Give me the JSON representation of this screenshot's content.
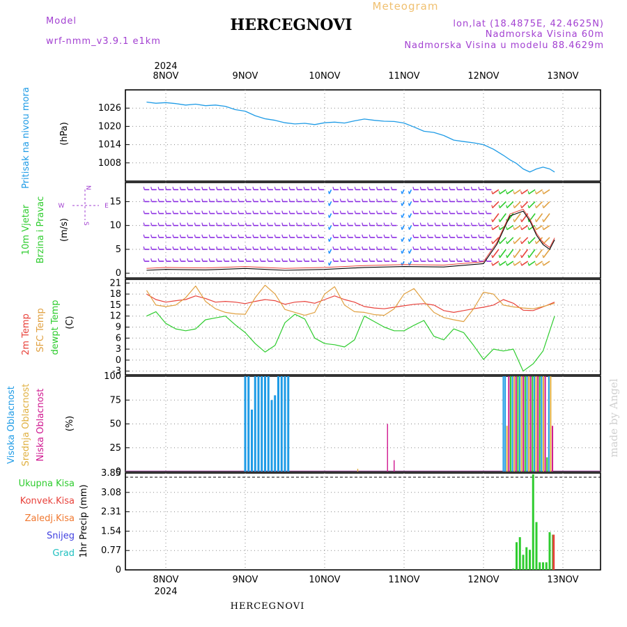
{
  "header": {
    "model_label": "Model",
    "model_name": "wrf-nmm_v3.9.1  e1km",
    "station": "HERCEGNOVI",
    "meteogram_label": "Meteogram",
    "lonlat": "lon,lat (18.4875E, 42.4625N)",
    "altitude": "Nadmorska Visina 60m",
    "model_altitude": "Nadmorska Visina u modelu 88.4629m",
    "footer_station": "HERCEGNOVI",
    "watermark": "made by Angel"
  },
  "colors": {
    "purple": "#a23fd1",
    "pressure": "#1e9be6",
    "wind_purple": "#8a2be2",
    "wind_blue": "#1e90ff",
    "temp2m": "#e8413a",
    "sfc": "#e0a040",
    "dew": "#2ecc2e",
    "high_cloud": "#1e9be6",
    "mid_cloud": "#e0b040",
    "low_cloud": "#d01890",
    "rain": "#2ecc2e",
    "conv": "#e8413a",
    "frozen": "#f07830",
    "snow": "#4040e0",
    "hail": "#20c0c0"
  },
  "time_axis": {
    "top_year": "2024",
    "bottom_year": "2024",
    "days": [
      "8NOV",
      "9NOV",
      "10NOV",
      "11NOV",
      "12NOV",
      "13NOV"
    ]
  },
  "panels": {
    "pressure": {
      "title": "Pritisak na nivou mora",
      "unit": "(hPa)"
    },
    "wind": {
      "title1": "10m Vjetar",
      "title2": "Brzina i Pravac",
      "unit": "(m/s)",
      "compass_n": "N",
      "compass_w": "W",
      "compass_e": "E",
      "compass_s": "S"
    },
    "temp": {
      "label1": "2m Temp",
      "label2": "SFC Temp",
      "label3": "dewpt Temp",
      "unit": "(C)"
    },
    "cloud": {
      "label1": "Visoka Oblacnost",
      "label2": "Srednja Oblacnost",
      "label3": "Niska Oblacnost",
      "unit": "(%)"
    },
    "precip": {
      "label1": "Ukupna Kisa",
      "label2": "Konvek.Kisa",
      "label3": "Zaledj.Kisa",
      "label4": "Snijeg",
      "label5": "Grad",
      "unit": "1hr Precip (mm)"
    }
  },
  "chart_data": [
    {
      "type": "line",
      "title": "Pritisak na nivou mora",
      "ylabel": "(hPa)",
      "ylim": [
        1002,
        1032
      ],
      "yticks": [
        "1026",
        "1020",
        "1014",
        "1008"
      ],
      "x_hours_from_8nov": [
        -6,
        -3,
        0,
        3,
        6,
        9,
        12,
        15,
        18,
        21,
        24,
        27,
        30,
        33,
        36,
        39,
        42,
        45,
        48,
        51,
        54,
        57,
        60,
        63,
        66,
        69,
        72,
        75,
        78,
        81,
        84,
        87,
        90,
        93,
        96,
        99,
        102,
        104,
        106,
        108,
        110,
        112,
        114,
        116,
        117.5
      ],
      "series": [
        {
          "name": "pressure",
          "values": [
            1028,
            1027.6,
            1027.8,
            1027.5,
            1027,
            1027.3,
            1026.8,
            1027,
            1026.6,
            1025.5,
            1025,
            1023.5,
            1022.5,
            1022,
            1021.2,
            1020.8,
            1021,
            1020.6,
            1021.2,
            1021.4,
            1021.1,
            1021.8,
            1022.4,
            1022,
            1021.7,
            1021.6,
            1021.1,
            1019.8,
            1018.4,
            1018,
            1017,
            1015.5,
            1015,
            1014.6,
            1014,
            1012.5,
            1010.5,
            1009,
            1007.8,
            1006,
            1005,
            1006,
            1006.6,
            1006,
            1005
          ]
        }
      ],
      "grid": true
    },
    {
      "type": "line",
      "title": "10m Vjetar Brzina i Pravac",
      "ylabel": "(m/s)",
      "ylim": [
        -1,
        19
      ],
      "yticks": [
        "15",
        "10",
        "5",
        "0"
      ],
      "series": [
        {
          "name": "wind speed",
          "x": [
            -6,
            0,
            12,
            24,
            36,
            48,
            60,
            72,
            84,
            96,
            100,
            104,
            108,
            110,
            112,
            114,
            116,
            117.5
          ],
          "values": [
            0.6,
            0.8,
            0.7,
            1,
            0.6,
            0.8,
            1.2,
            1.4,
            1.3,
            2,
            6,
            12,
            13,
            11,
            8,
            6,
            5,
            7
          ]
        }
      ],
      "grid": true
    },
    {
      "type": "line",
      "title": "2m Temp / SFC Temp / dewpt Temp",
      "ylabel": "(C)",
      "ylim": [
        -4,
        22
      ],
      "yticks": [
        "21",
        "18",
        "15",
        "12",
        "9",
        "6",
        "3",
        "0",
        "-3"
      ],
      "x_hours_from_8nov": [
        -6,
        -3,
        0,
        3,
        6,
        9,
        12,
        15,
        18,
        21,
        24,
        27,
        30,
        33,
        36,
        39,
        42,
        45,
        48,
        51,
        54,
        57,
        60,
        63,
        66,
        69,
        72,
        75,
        78,
        81,
        84,
        87,
        90,
        93,
        96,
        99,
        102,
        105,
        108,
        111,
        114,
        117.5
      ],
      "series": [
        {
          "name": "2m Temp",
          "values": [
            18,
            16.5,
            15.8,
            16.2,
            16.5,
            17.5,
            16.8,
            15.8,
            16,
            15.8,
            15.4,
            16,
            16.5,
            16.2,
            15.2,
            15.8,
            16,
            15.5,
            16.5,
            17.5,
            16.5,
            15.8,
            14.6,
            14.2,
            14,
            14.4,
            14.8,
            15.2,
            15.4,
            15,
            13.5,
            13,
            13.5,
            14,
            14.4,
            15,
            16.5,
            15.5,
            13.6,
            13.5,
            14.5,
            15.8
          ]
        },
        {
          "name": "SFC Temp",
          "values": [
            19,
            15,
            14.6,
            15,
            17,
            20.2,
            16,
            14,
            13,
            12.6,
            12.5,
            17,
            20.4,
            18,
            13.8,
            13,
            12.2,
            13,
            18,
            20,
            15,
            13.2,
            13,
            12.4,
            12.2,
            14,
            18,
            19.5,
            16,
            13,
            11.6,
            11,
            10.5,
            14,
            18.5,
            18,
            15,
            14.5,
            14.2,
            14,
            14.6,
            15.5
          ]
        },
        {
          "name": "dewpt Temp",
          "values": [
            12,
            13.2,
            10,
            8.5,
            8,
            8.5,
            11,
            11.5,
            12,
            9.6,
            7.5,
            4.5,
            2.2,
            4,
            10.2,
            12.5,
            11.2,
            6,
            4.5,
            4.2,
            3.6,
            5.5,
            12,
            10.5,
            9,
            8,
            8,
            9.5,
            10.8,
            6.5,
            5.5,
            8.5,
            7.5,
            4,
            0.2,
            3,
            2.5,
            3,
            -3,
            -1,
            2.5,
            12
          ]
        }
      ],
      "grid": true
    },
    {
      "type": "bar",
      "title": "Visoka / Srednja / Niska Oblacnost",
      "ylabel": "(%)",
      "ylim": [
        0,
        100
      ],
      "yticks": [
        "100",
        "75",
        "50",
        "25",
        "0"
      ],
      "series": [
        {
          "name": "Visoka Oblacnost",
          "x": [
            24,
            25,
            26,
            27,
            28,
            29,
            30,
            31,
            32,
            33,
            34,
            35,
            36,
            37
          ],
          "values": [
            100,
            100,
            65,
            100,
            100,
            100,
            100,
            100,
            75,
            80,
            100,
            100,
            100,
            100
          ]
        },
        {
          "name": "Niska Oblacnost",
          "x": [
            67,
            69
          ],
          "values": [
            50,
            12
          ]
        },
        {
          "name": "Srednja Oblacnost",
          "x": [
            58
          ],
          "values": [
            3
          ]
        }
      ],
      "grid": true
    },
    {
      "type": "bar",
      "title": "1hr Precip",
      "ylabel": "1hr Precip (mm)",
      "ylim": [
        0,
        3.85
      ],
      "yticks": [
        "3.85",
        "3.08",
        "2.31",
        "1.54",
        "0.77",
        "0"
      ],
      "series": [
        {
          "name": "Ukupna Kisa",
          "x": [
            105,
            106,
            107,
            108,
            109,
            110,
            111,
            112,
            113,
            114,
            115,
            116,
            117
          ],
          "values": [
            0.05,
            1.1,
            1.3,
            0.6,
            0.9,
            0.8,
            3.8,
            1.9,
            0.3,
            0.3,
            0.3,
            1.5,
            1.4
          ]
        }
      ],
      "grid": true
    }
  ]
}
